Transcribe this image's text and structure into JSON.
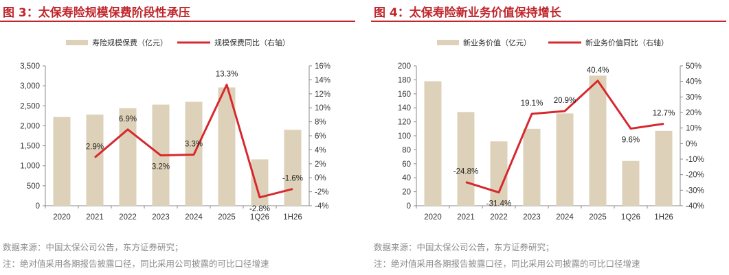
{
  "colors": {
    "bar": "#ddd2b9",
    "line": "#d7282f",
    "title": "#c0262b",
    "axis": "#555555",
    "footer": "#8a8a8a"
  },
  "charts": [
    {
      "title": "图 3：太保寿险规模保费阶段性承压",
      "source": "数据来源：中国太保公司公告，东方证券研究；",
      "note": "注：绝对值采用各期报告披露口径，同比采用公司披露的可比口径增速",
      "chart_data": {
        "type": "bar",
        "categories": [
          "2020",
          "2021",
          "2022",
          "2023",
          "2024",
          "2025",
          "1Q26",
          "1H26"
        ],
        "series": [
          {
            "name": "寿险规模保费（亿元）",
            "type": "bar",
            "axis": "left",
            "values": [
              2220,
              2280,
              2440,
              2530,
              2600,
              2960,
              1160,
              1900
            ]
          },
          {
            "name": "规模保费同比（右轴）",
            "type": "line",
            "axis": "right",
            "values": [
              null,
              2.9,
              6.9,
              3.2,
              3.3,
              13.3,
              -2.8,
              -1.6
            ],
            "labels": [
              "",
              "2.9%",
              "6.9%",
              "3.2%",
              "3.3%",
              "13.3%",
              "-2.8%",
              "-1.6%"
            ]
          }
        ],
        "ylim_left": [
          0,
          3500
        ],
        "ylim_right": [
          -4,
          16
        ],
        "left_ticks": [
          "0",
          "500",
          "1,000",
          "1,500",
          "2,000",
          "2,500",
          "3,000",
          "3,500"
        ],
        "right_ticks": [
          "-4%",
          "-2%",
          "0%",
          "2%",
          "4%",
          "6%",
          "8%",
          "10%",
          "12%",
          "14%",
          "16%"
        ],
        "legend_position": "top"
      }
    },
    {
      "title": "图 4：太保寿险新业务价值保持增长",
      "source": "数据来源：中国太保公司公告，东方证券研究；",
      "note": "注：绝对值采用各期报告披露口径，同比采用公司披露的可比口径增速",
      "chart_data": {
        "type": "bar",
        "categories": [
          "2020",
          "2021",
          "2022",
          "2023",
          "2024",
          "2025",
          "1Q26",
          "1H26"
        ],
        "series": [
          {
            "name": "新业务价值（亿元）",
            "type": "bar",
            "axis": "left",
            "values": [
              178,
              134,
              92,
              110,
              132,
              186,
              64,
              107
            ]
          },
          {
            "name": "新业务价值同比（右轴）",
            "type": "line",
            "axis": "right",
            "values": [
              null,
              -24.8,
              -31.4,
              19.1,
              20.9,
              40.4,
              9.6,
              12.7
            ],
            "labels": [
              "",
              "-24.8%",
              "-31.4%",
              "19.1%",
              "20.9%",
              "40.4%",
              "9.6%",
              "12.7%"
            ]
          }
        ],
        "ylim_left": [
          0,
          200
        ],
        "ylim_right": [
          -40,
          50
        ],
        "left_ticks": [
          "0",
          "20",
          "40",
          "60",
          "80",
          "100",
          "120",
          "140",
          "160",
          "180",
          "200"
        ],
        "right_ticks": [
          "-40%",
          "-30%",
          "-20%",
          "-10%",
          "0%",
          "10%",
          "20%",
          "30%",
          "40%",
          "50%"
        ],
        "legend_position": "top"
      }
    }
  ]
}
